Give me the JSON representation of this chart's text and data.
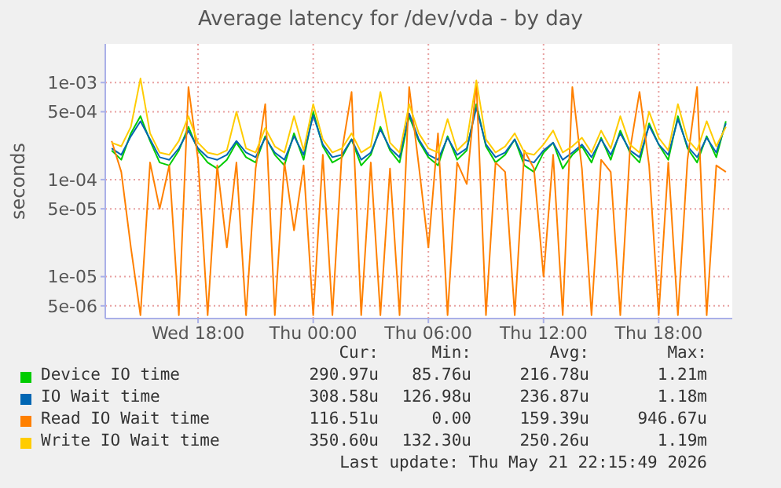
{
  "chart_data": {
    "type": "line",
    "title": "Average latency for /dev/vda - by day",
    "ylabel": "seconds",
    "log": true,
    "grid": true,
    "legend": "bottom",
    "xlim": [
      "2026-05-20T13:10",
      "2026-05-21T21:50"
    ],
    "ylim": [
      3.7e-06,
      0.0025
    ],
    "xticks": [
      {
        "value": "2026-05-20T18:00",
        "label": "Wed 18:00"
      },
      {
        "value": "2026-05-21T00:00",
        "label": "Thu 00:00"
      },
      {
        "value": "2026-05-21T06:00",
        "label": "Thu 06:00"
      },
      {
        "value": "2026-05-21T12:00",
        "label": "Thu 12:00"
      },
      {
        "value": "2026-05-21T18:00",
        "label": "Thu 18:00"
      }
    ],
    "yticks": [
      {
        "value": 5e-06,
        "label": "5e-06"
      },
      {
        "value": 1e-05,
        "label": "1e-05"
      },
      {
        "value": 5e-05,
        "label": "5e-05"
      },
      {
        "value": 0.0001,
        "label": "1e-04"
      },
      {
        "value": 0.0005,
        "label": "5e-04"
      },
      {
        "value": 0.001,
        "label": "1e-03"
      }
    ],
    "x": [
      "2026-05-20T13:30",
      "2026-05-20T14:00",
      "2026-05-20T14:30",
      "2026-05-20T15:00",
      "2026-05-20T15:30",
      "2026-05-20T16:00",
      "2026-05-20T16:30",
      "2026-05-20T17:00",
      "2026-05-20T17:30",
      "2026-05-20T18:00",
      "2026-05-20T18:30",
      "2026-05-20T19:00",
      "2026-05-20T19:30",
      "2026-05-20T20:00",
      "2026-05-20T20:30",
      "2026-05-20T21:00",
      "2026-05-20T21:30",
      "2026-05-20T22:00",
      "2026-05-20T22:30",
      "2026-05-20T23:00",
      "2026-05-20T23:30",
      "2026-05-21T00:00",
      "2026-05-21T00:30",
      "2026-05-21T01:00",
      "2026-05-21T01:30",
      "2026-05-21T02:00",
      "2026-05-21T02:30",
      "2026-05-21T03:00",
      "2026-05-21T03:30",
      "2026-05-21T04:00",
      "2026-05-21T04:30",
      "2026-05-21T05:00",
      "2026-05-21T05:30",
      "2026-05-21T06:00",
      "2026-05-21T06:30",
      "2026-05-21T07:00",
      "2026-05-21T07:30",
      "2026-05-21T08:00",
      "2026-05-21T08:30",
      "2026-05-21T09:00",
      "2026-05-21T09:30",
      "2026-05-21T10:00",
      "2026-05-21T10:30",
      "2026-05-21T11:00",
      "2026-05-21T11:30",
      "2026-05-21T12:00",
      "2026-05-21T12:30",
      "2026-05-21T13:00",
      "2026-05-21T13:30",
      "2026-05-21T14:00",
      "2026-05-21T14:30",
      "2026-05-21T15:00",
      "2026-05-21T15:30",
      "2026-05-21T16:00",
      "2026-05-21T16:30",
      "2026-05-21T17:00",
      "2026-05-21T17:30",
      "2026-05-21T18:00",
      "2026-05-21T18:30",
      "2026-05-21T19:00",
      "2026-05-21T19:30",
      "2026-05-21T20:00",
      "2026-05-21T20:30",
      "2026-05-21T21:00",
      "2026-05-21T21:30"
    ],
    "series": [
      {
        "name": "Device IO time",
        "color": "#00cc00",
        "values": [
          0.0002,
          0.00016,
          0.0003,
          0.00045,
          0.00025,
          0.00015,
          0.00014,
          0.0002,
          0.00035,
          0.0002,
          0.00015,
          0.00013,
          0.00016,
          0.00024,
          0.00017,
          0.00015,
          0.00028,
          0.00018,
          0.00014,
          0.0003,
          0.00016,
          0.0005,
          0.00022,
          0.00015,
          0.00017,
          0.00026,
          0.00014,
          0.00018,
          0.00035,
          0.0002,
          0.00015,
          0.00045,
          0.00025,
          0.00017,
          0.00014,
          0.00028,
          0.00016,
          0.0002,
          0.0006,
          0.00022,
          0.00015,
          0.00018,
          0.00026,
          0.00014,
          0.00012,
          0.00019,
          0.00024,
          0.00013,
          0.00018,
          0.00022,
          0.00015,
          0.00027,
          0.00016,
          0.00032,
          0.00019,
          0.00015,
          0.00038,
          0.00023,
          0.00016,
          0.00045,
          0.00021,
          0.00015,
          0.00028,
          0.00017,
          0.0004
        ]
      },
      {
        "name": "IO Wait time",
        "color": "#0066b3",
        "values": [
          0.00021,
          0.00018,
          0.00028,
          0.0004,
          0.00026,
          0.00017,
          0.00016,
          0.00021,
          0.00032,
          0.00021,
          0.00017,
          0.00016,
          0.00018,
          0.00025,
          0.00019,
          0.00017,
          0.00027,
          0.00019,
          0.00016,
          0.00028,
          0.00018,
          0.00046,
          0.00023,
          0.00017,
          0.00018,
          0.00026,
          0.00016,
          0.00019,
          0.00033,
          0.00021,
          0.00017,
          0.00048,
          0.00026,
          0.00018,
          0.00016,
          0.00027,
          0.00018,
          0.00021,
          0.00055,
          0.00023,
          0.00017,
          0.00019,
          0.00026,
          0.00016,
          0.00015,
          0.0002,
          0.00024,
          0.00016,
          0.00019,
          0.00023,
          0.00017,
          0.00026,
          0.00018,
          0.0003,
          0.0002,
          0.00017,
          0.00036,
          0.00023,
          0.00018,
          0.00042,
          0.00022,
          0.00017,
          0.00027,
          0.00019,
          0.00038
        ]
      },
      {
        "name": "Read IO Wait time",
        "color": "#ff8000",
        "values": [
          0.00025,
          0.00012,
          2e-05,
          4e-06,
          0.00015,
          5e-05,
          0.00014,
          4e-06,
          0.0009,
          0.00016,
          4e-06,
          0.00014,
          2e-05,
          0.00015,
          4e-06,
          0.00013,
          0.0006,
          4e-06,
          0.00015,
          3e-05,
          0.00014,
          4e-06,
          0.00018,
          4e-06,
          0.0002,
          0.0008,
          4e-06,
          0.00015,
          4e-06,
          0.00013,
          4e-06,
          0.0009,
          0.00014,
          2e-05,
          0.0003,
          4e-06,
          0.00015,
          9e-05,
          0.001,
          4e-06,
          0.00015,
          0.00012,
          4e-06,
          0.0002,
          0.00013,
          1e-05,
          0.00018,
          4e-06,
          0.0009,
          0.00013,
          4e-06,
          0.00016,
          0.00012,
          4e-06,
          0.0002,
          0.0008,
          0.00014,
          4e-06,
          0.00015,
          4e-06,
          0.00016,
          0.0009,
          4e-06,
          0.00014,
          0.00012
        ]
      },
      {
        "name": "Write IO Wait time",
        "color": "#ffcc00",
        "values": [
          0.00024,
          0.00022,
          0.00035,
          0.0011,
          0.0003,
          0.00019,
          0.00018,
          0.00025,
          0.00045,
          0.00024,
          0.00019,
          0.00018,
          0.0002,
          0.0005,
          0.00021,
          0.00019,
          0.00034,
          0.00022,
          0.00019,
          0.00045,
          0.0002,
          0.0006,
          0.00026,
          0.00019,
          0.00021,
          0.0003,
          0.00019,
          0.00022,
          0.0008,
          0.00024,
          0.00019,
          0.0006,
          0.0003,
          0.00021,
          0.00019,
          0.00042,
          0.0002,
          0.00025,
          0.00105,
          0.00026,
          0.00019,
          0.00022,
          0.0003,
          0.00019,
          0.00018,
          0.00023,
          0.00032,
          0.00019,
          0.00022,
          0.00027,
          0.00019,
          0.00032,
          0.00021,
          0.00045,
          0.00023,
          0.00019,
          0.0005,
          0.00027,
          0.0002,
          0.0006,
          0.00026,
          0.0002,
          0.0004,
          0.00022,
          0.00035
        ]
      }
    ],
    "annotations": [
      "Cur:",
      "Min:",
      "Avg:",
      "Max:",
      "290.97u",
      "85.76u",
      "216.78u",
      "1.21m",
      "308.58u",
      "126.98u",
      "236.87u",
      "1.18m",
      "116.51u",
      "0.00",
      "159.39u",
      "946.67u",
      "350.60u",
      "132.30u",
      "250.26u",
      "1.19m",
      "Last update: Thu May 21 22:15:49 2026"
    ]
  }
}
